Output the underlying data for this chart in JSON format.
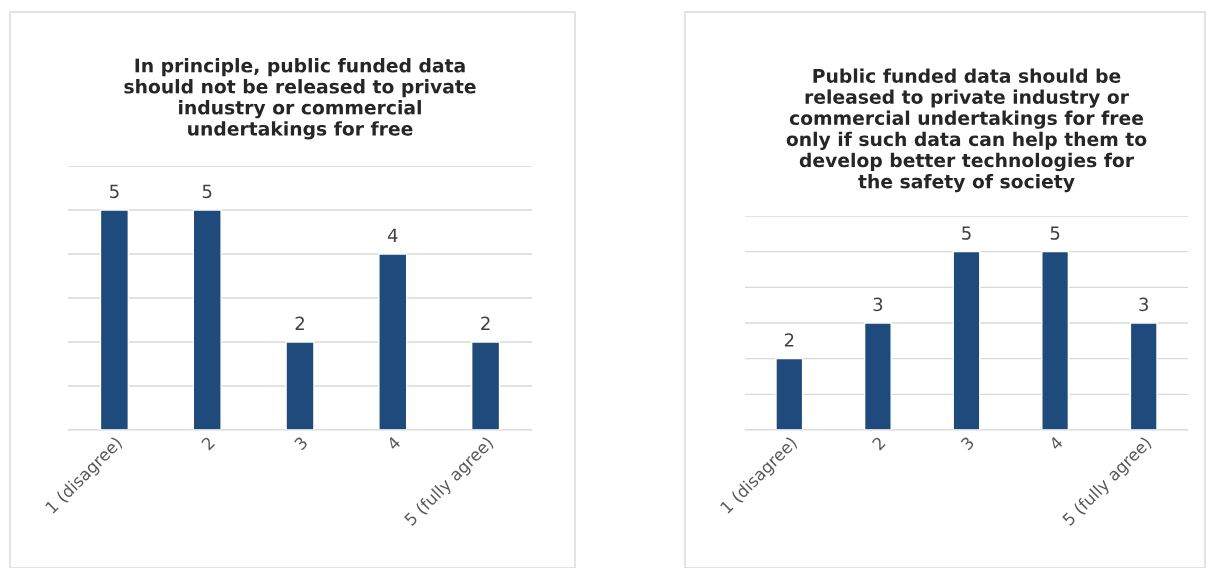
{
  "chart_data": [
    {
      "type": "bar",
      "title": "In principle, public funded data\nshould not be released to private\nindustry or commercial\nundertakings for free",
      "categories": [
        "1 (disagree)",
        "2",
        "3",
        "4",
        "5 (fully agree)"
      ],
      "values": [
        5,
        5,
        2,
        4,
        2
      ],
      "color": "#1f4a7c",
      "ylim": [
        0,
        6
      ],
      "yticks": [
        {
          "value": 0,
          "label": null
        },
        {
          "value": 1,
          "label": null
        },
        {
          "value": 2,
          "label": null
        },
        {
          "value": 3,
          "label": null
        },
        {
          "value": 4,
          "label": null
        },
        {
          "value": 5,
          "label": null
        },
        {
          "value": 6,
          "label": null
        }
      ],
      "grid": "y",
      "data_labels": true,
      "tick_labels": "x"
    },
    {
      "type": "bar",
      "title": "Public funded data should be\nreleased to private industry or\ncommercial undertakings for free\nonly if such data can help them to\ndevelop better technologies for\nthe safety of society",
      "categories": [
        "1 (disagree)",
        "2",
        "3",
        "4",
        "5 (fully agree)"
      ],
      "values": [
        2,
        3,
        5,
        5,
        3
      ],
      "color": "#1f4a7c",
      "ylim": [
        0,
        6
      ],
      "yticks": [
        {
          "value": 0,
          "label": null
        },
        {
          "value": 1,
          "label": null
        },
        {
          "value": 2,
          "label": null
        },
        {
          "value": 3,
          "label": null
        },
        {
          "value": 4,
          "label": null
        },
        {
          "value": 5,
          "label": null
        },
        {
          "value": 6,
          "label": null
        }
      ],
      "grid": "y",
      "data_labels": true,
      "tick_labels": "x"
    }
  ]
}
